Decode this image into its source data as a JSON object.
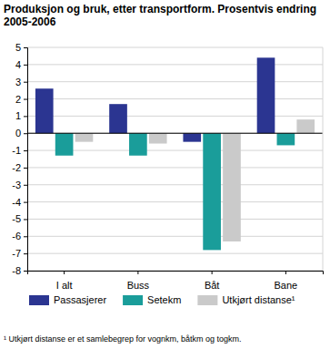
{
  "chart_data": {
    "type": "bar",
    "title": "Produksjon og bruk, etter transportform. Prosentvis endring 2005-2006",
    "categories": [
      "I alt",
      "Buss",
      "Båt",
      "Bane"
    ],
    "series": [
      {
        "name": "Passasjerer",
        "color": "#2b3591",
        "values": [
          2.6,
          1.7,
          -0.5,
          4.4
        ]
      },
      {
        "name": "Setekm",
        "color": "#1a9d9a",
        "values": [
          -1.3,
          -1.3,
          -6.8,
          -0.7
        ]
      },
      {
        "name": "Utkjørt distanse¹",
        "color": "#cacaca",
        "values": [
          -0.5,
          -0.6,
          -6.3,
          0.8
        ]
      }
    ],
    "ylim": [
      -8,
      5
    ],
    "yticks": [
      -8,
      -7,
      -6,
      -5,
      -4,
      -3,
      -2,
      -1,
      0,
      1,
      2,
      3,
      4,
      5
    ],
    "grid": true,
    "legend": "bottom",
    "annotations": [
      "¹ Utkjørt distanse er et samlebegrep for vognkm, båtkm og togkm."
    ]
  }
}
